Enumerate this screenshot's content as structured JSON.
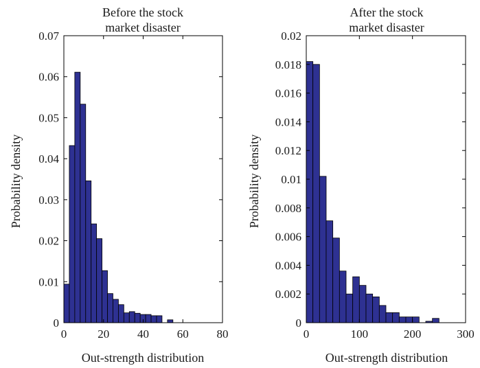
{
  "chart_data": [
    {
      "type": "bar",
      "title_lines": [
        "Before the stock",
        "market disaster"
      ],
      "xlabel": "Out-strength distribution",
      "ylabel": "Probability density",
      "xlim": [
        0,
        80
      ],
      "ylim": [
        0,
        0.07
      ],
      "xticks": [
        0,
        20,
        40,
        60,
        80
      ],
      "xtick_labels": [
        "0",
        "20",
        "40",
        "60",
        "80"
      ],
      "yticks": [
        0,
        0.01,
        0.02,
        0.03,
        0.04,
        0.05,
        0.06,
        0.07
      ],
      "ytick_labels": [
        "0",
        "0.01",
        "0.02",
        "0.03",
        "0.04",
        "0.05",
        "0.06",
        "0.07"
      ],
      "bin_width": 2.75,
      "bin_start": 0,
      "values": [
        0.0094,
        0.0432,
        0.0611,
        0.0533,
        0.0346,
        0.0241,
        0.0205,
        0.0127,
        0.0071,
        0.0057,
        0.0044,
        0.0024,
        0.0027,
        0.0023,
        0.002,
        0.002,
        0.0017,
        0.0017,
        0,
        0.0007
      ],
      "bar_color": "#2e3192",
      "grid": false
    },
    {
      "type": "bar",
      "title_lines": [
        "After the stock",
        "market disaster"
      ],
      "xlabel": "Out-strength distribution",
      "ylabel": "Probability density",
      "xlim": [
        0,
        300
      ],
      "ylim": [
        0,
        0.02
      ],
      "xticks": [
        0,
        100,
        200,
        300
      ],
      "xtick_labels": [
        "0",
        "100",
        "200",
        "300"
      ],
      "yticks": [
        0,
        0.002,
        0.004,
        0.006,
        0.008,
        0.01,
        0.012,
        0.014,
        0.016,
        0.018,
        0.02
      ],
      "ytick_labels": [
        "0",
        "0.002",
        "0.004",
        "0.006",
        "0.008",
        "0.01",
        "0.012",
        "0.014",
        "0.016",
        "0.018",
        "0.02"
      ],
      "bin_width": 12.5,
      "bin_start": 0,
      "values": [
        0.0182,
        0.018,
        0.0102,
        0.0071,
        0.0059,
        0.0036,
        0.002,
        0.0032,
        0.0026,
        0.002,
        0.0018,
        0.0012,
        0.0007,
        0.0007,
        0.0004,
        0.0004,
        0.0004,
        0,
        0.0001,
        0.0003
      ],
      "bar_color": "#2e3192",
      "grid": false
    }
  ]
}
